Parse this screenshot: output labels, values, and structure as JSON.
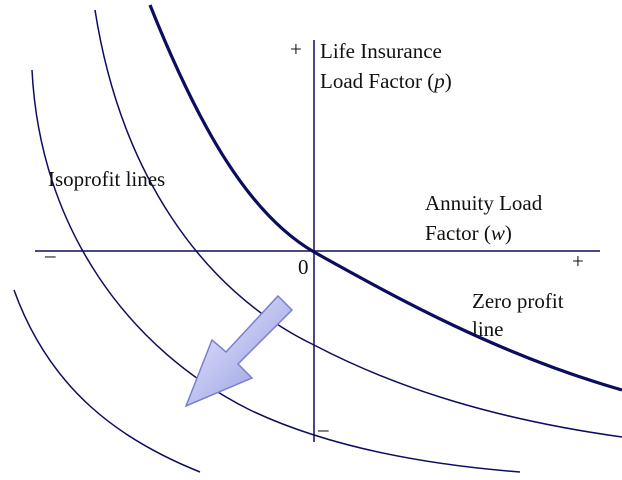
{
  "axes": {
    "y_plus": "+",
    "y_minus": "–",
    "x_minus": "–",
    "x_plus": "+",
    "origin": "0"
  },
  "y_axis_label": {
    "line1": "Life  Insurance",
    "line2": {
      "text": "Load Factor (",
      "var": "p",
      "close": ")"
    }
  },
  "x_axis_label": {
    "line1": "Annuity Load",
    "line2": {
      "text": "Factor (",
      "var": "w",
      "close": ")"
    }
  },
  "isoprofit_label": "Isoprofit lines",
  "zero_profit_label": {
    "line1": "Zero profit",
    "line2": "line"
  }
}
